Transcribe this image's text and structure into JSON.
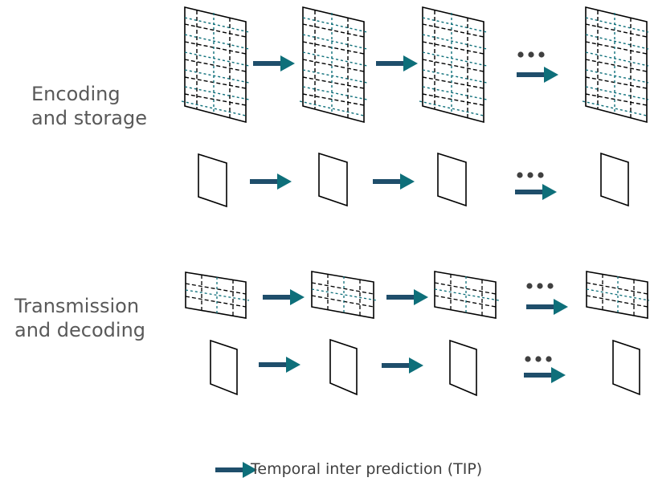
{
  "labels": {
    "encoding_line1": "Encoding",
    "encoding_line2": "and storage",
    "transmission_line1": "Transmission",
    "transmission_line2": "and decoding"
  },
  "legend": {
    "text": "Temporal inter prediction (TIP)"
  },
  "colors": {
    "arrow": "#1f4e6b",
    "arrow_head": "#0e6f7a",
    "grid_black": "#000000",
    "grid_teal": "#0e6f7a",
    "frame_stroke": "#000000"
  }
}
